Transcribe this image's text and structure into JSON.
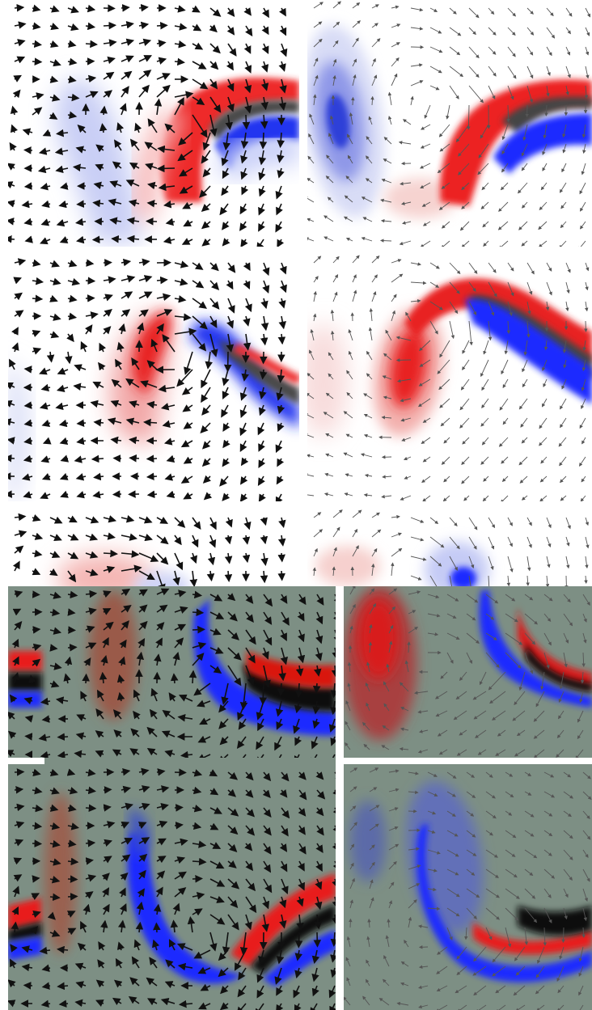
{
  "figure": {
    "description_hidden": "",
    "colors": {
      "page_bg": "#ffffff",
      "lower_bg": "#7d8f84",
      "positive": "#e8141a",
      "negative": "#1a2bff",
      "core": "#4a4a4a",
      "arrow_dark": "#111111",
      "arrow_light": "#444444"
    },
    "panels": [
      {
        "id": "panel-top-left",
        "style": "light",
        "arrow_weight": "heavy"
      },
      {
        "id": "panel-top-right",
        "style": "light",
        "arrow_weight": "thin"
      },
      {
        "id": "panel-mid-left",
        "style": "light",
        "arrow_weight": "heavy"
      },
      {
        "id": "panel-mid-right",
        "style": "light",
        "arrow_weight": "thin"
      },
      {
        "id": "panel-strip-left",
        "style": "light",
        "arrow_weight": "heavy"
      },
      {
        "id": "panel-strip-right",
        "style": "light",
        "arrow_weight": "thin"
      },
      {
        "id": "panel-bottom-tl",
        "style": "dark",
        "arrow_weight": "heavy"
      },
      {
        "id": "panel-bottom-tr",
        "style": "dark",
        "arrow_weight": "thin"
      },
      {
        "id": "panel-bottom-bl",
        "style": "dark",
        "arrow_weight": "heavy"
      },
      {
        "id": "panel-bottom-br",
        "style": "dark",
        "arrow_weight": "thin"
      }
    ]
  }
}
